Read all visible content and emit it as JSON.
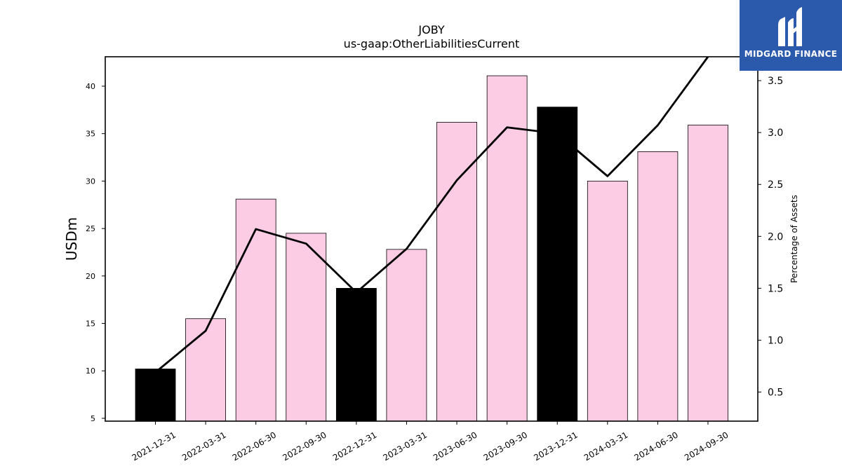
{
  "chart_data": {
    "type": "bar",
    "title": "JOBY",
    "subtitle": "us-gaap:OtherLiabilitiesCurrent",
    "ylabel": "USDm",
    "y2label": "Percentage of Assets",
    "categories": [
      "2021-12-31",
      "2022-03-31",
      "2022-06-30",
      "2022-09-30",
      "2022-12-31",
      "2023-03-31",
      "2023-06-30",
      "2023-09-30",
      "2023-12-31",
      "2024-03-31",
      "2024-06-30",
      "2024-09-30"
    ],
    "series": [
      {
        "type": "bar",
        "axis": "left",
        "values": [
          10.2,
          15.5,
          28.1,
          24.5,
          18.7,
          22.8,
          36.2,
          41.1,
          37.8,
          30.0,
          33.1,
          35.9
        ],
        "colors": [
          "#000000",
          "#fccbe4",
          "#fccbe4",
          "#fccbe4",
          "#000000",
          "#fccbe4",
          "#fccbe4",
          "#fccbe4",
          "#000000",
          "#fccbe4",
          "#fccbe4",
          "#fccbe4"
        ]
      },
      {
        "type": "line",
        "axis": "right",
        "values": [
          0.69,
          1.09,
          2.07,
          1.93,
          1.46,
          1.88,
          2.54,
          3.05,
          2.99,
          2.58,
          3.07,
          3.73
        ],
        "color": "#000000"
      }
    ],
    "ylim": [
      4.7,
      43.1
    ],
    "yticks": [
      5,
      10,
      15,
      20,
      25,
      30,
      35,
      40
    ],
    "y2lim": [
      0.22,
      3.73
    ],
    "y2ticks": [
      0.5,
      1.0,
      1.5,
      2.0,
      2.5,
      3.0,
      3.5
    ],
    "grid": false
  },
  "logo": {
    "text": "MIDGARD FINANCE",
    "background": "#2b5aac"
  }
}
